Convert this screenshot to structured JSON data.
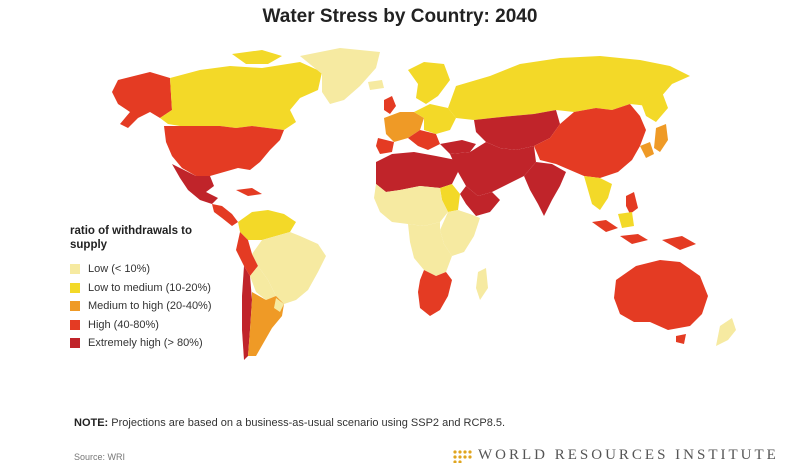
{
  "title": "Water Stress by Country: 2040",
  "legend": {
    "heading": "ratio of withdrawals to supply",
    "items": [
      {
        "label": "Low (< 10%)",
        "color": "#f6eaa1"
      },
      {
        "label": "Low to medium (10-20%)",
        "color": "#f3d928"
      },
      {
        "label": "Medium to high  (20-40%)",
        "color": "#ef9a26"
      },
      {
        "label": "High (40-80%)",
        "color": "#e43b23"
      },
      {
        "label": "Extremely high (> 80%)",
        "color": "#c0242a"
      }
    ]
  },
  "note": {
    "prefix": "NOTE:",
    "text": "Projections are based on a business-as-usual scenario using SSP2 and RCP8.5."
  },
  "footer": {
    "source": "Source: WRI",
    "publisher": "WORLD RESOURCES INSTITUTE"
  }
}
